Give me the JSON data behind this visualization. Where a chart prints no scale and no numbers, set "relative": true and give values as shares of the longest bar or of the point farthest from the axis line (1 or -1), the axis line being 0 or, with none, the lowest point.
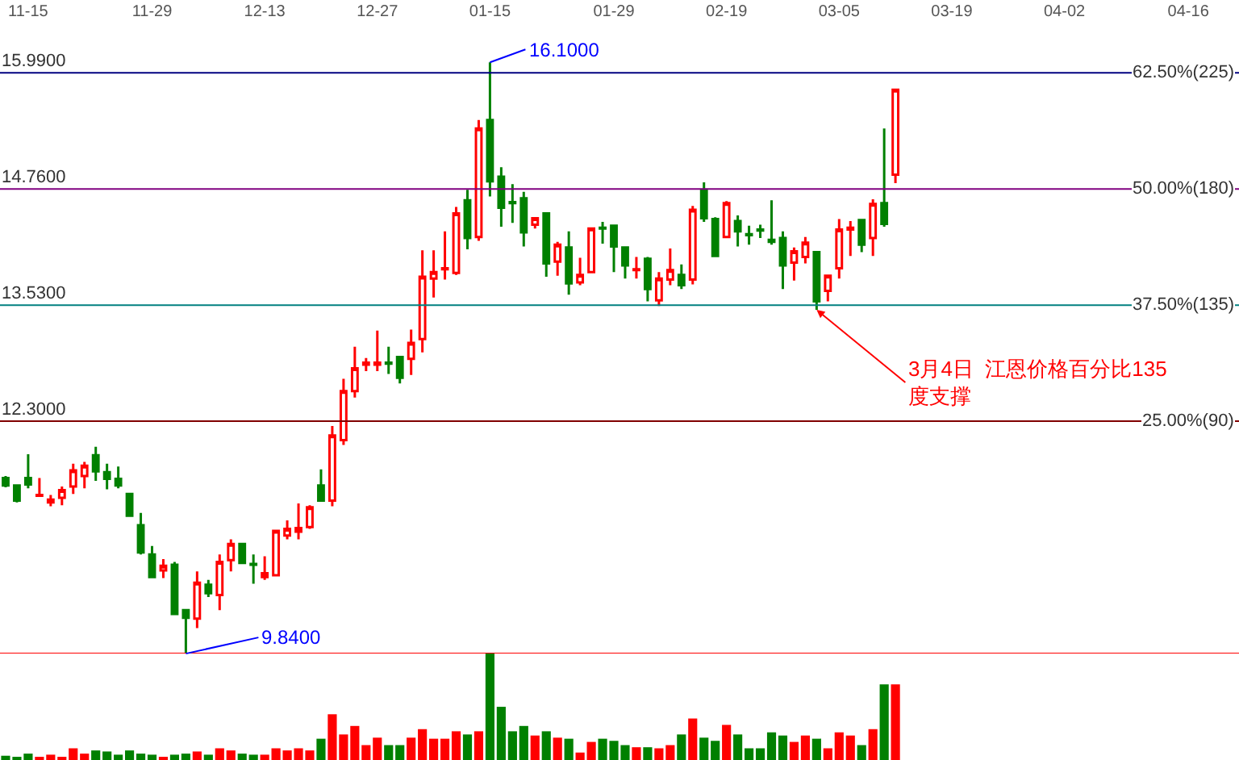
{
  "chart_data": [
    {
      "type": "candlestick",
      "categories": [
        null,
        null,
        "11-15",
        null,
        null,
        null,
        null,
        null,
        null,
        null,
        null,
        null,
        null,
        "11-29",
        null,
        null,
        null,
        null,
        null,
        null,
        null,
        null,
        null,
        "12-13",
        null,
        null,
        null,
        null,
        null,
        null,
        null,
        null,
        null,
        "12-27",
        null,
        null,
        null,
        null,
        null,
        null,
        null,
        null,
        null,
        "01-15",
        null,
        null,
        null,
        null,
        null,
        null,
        null,
        null,
        null,
        null,
        "01-29",
        null,
        null,
        null,
        null,
        null,
        null,
        null,
        null,
        null,
        "02-19",
        null,
        null,
        null,
        null,
        null,
        null,
        null,
        null,
        null,
        "03-05",
        null,
        null,
        null,
        null,
        null,
        null,
        null,
        null,
        null,
        "03-19",
        null,
        null,
        null,
        null,
        null,
        null,
        null,
        null,
        null,
        "04-02",
        null,
        null,
        null,
        null,
        null,
        null,
        null,
        null,
        null,
        null,
        "04-16",
        null,
        null,
        null,
        null
      ],
      "ohlc": [
        [
          11.7,
          11.72,
          11.6,
          11.62
        ],
        [
          11.62,
          11.62,
          11.44,
          11.46
        ],
        [
          11.7,
          11.95,
          11.59,
          11.63
        ],
        [
          11.51,
          11.7,
          11.5,
          11.52
        ],
        [
          11.44,
          11.52,
          11.4,
          11.47
        ],
        [
          11.49,
          11.61,
          11.41,
          11.57
        ],
        [
          11.61,
          11.85,
          11.53,
          11.78
        ],
        [
          11.72,
          11.87,
          11.59,
          11.83
        ],
        [
          11.94,
          12.03,
          11.67,
          11.77
        ],
        [
          11.76,
          11.85,
          11.58,
          11.69
        ],
        [
          11.69,
          11.82,
          11.59,
          11.62
        ],
        [
          11.53,
          11.53,
          11.3,
          11.3
        ],
        [
          11.2,
          11.33,
          10.89,
          10.91
        ],
        [
          10.89,
          10.98,
          10.65,
          10.65
        ],
        [
          10.72,
          10.84,
          10.64,
          10.77
        ],
        [
          10.78,
          10.81,
          10.26,
          10.26
        ],
        [
          10.3,
          10.3,
          9.84,
          10.22
        ],
        [
          10.21,
          10.71,
          10.11,
          10.59
        ],
        [
          10.57,
          10.62,
          10.44,
          10.48
        ],
        [
          10.46,
          10.89,
          10.3,
          10.81
        ],
        [
          10.83,
          11.05,
          10.71,
          11.0
        ],
        [
          11.0,
          11.0,
          10.79,
          10.8
        ],
        [
          10.79,
          10.89,
          10.58,
          10.78
        ],
        [
          10.65,
          10.87,
          10.62,
          10.69
        ],
        [
          10.67,
          11.15,
          10.67,
          11.14
        ],
        [
          11.09,
          11.25,
          11.05,
          11.16
        ],
        [
          11.13,
          11.43,
          11.05,
          11.17
        ],
        [
          11.18,
          11.41,
          11.16,
          11.39
        ],
        [
          11.62,
          11.79,
          11.46,
          11.46
        ],
        [
          11.46,
          12.25,
          11.4,
          12.15
        ],
        [
          12.1,
          12.75,
          12.05,
          12.62
        ],
        [
          12.62,
          13.09,
          12.55,
          12.86
        ],
        [
          12.9,
          12.97,
          12.83,
          12.92
        ],
        [
          12.9,
          13.26,
          12.83,
          12.92
        ],
        [
          12.92,
          13.09,
          12.8,
          12.91
        ],
        [
          12.98,
          12.98,
          12.7,
          12.76
        ],
        [
          12.96,
          13.27,
          12.79,
          13.13
        ],
        [
          13.17,
          14.11,
          13.03,
          13.83
        ],
        [
          13.81,
          14.11,
          13.61,
          13.88
        ],
        [
          13.91,
          14.31,
          13.8,
          13.92
        ],
        [
          13.87,
          14.57,
          13.85,
          14.5
        ],
        [
          14.64,
          14.75,
          14.12,
          14.24
        ],
        [
          14.25,
          15.49,
          14.21,
          15.4
        ],
        [
          15.49,
          16.1,
          14.68,
          14.84
        ],
        [
          14.89,
          14.99,
          14.36,
          14.56
        ],
        [
          14.62,
          14.81,
          14.4,
          14.61
        ],
        [
          14.66,
          14.73,
          14.15,
          14.3
        ],
        [
          14.38,
          14.45,
          14.34,
          14.45
        ],
        [
          14.5,
          14.5,
          13.83,
          13.97
        ],
        [
          13.99,
          14.2,
          13.84,
          14.17
        ],
        [
          14.14,
          14.31,
          13.64,
          13.76
        ],
        [
          13.77,
          14.03,
          13.74,
          13.85
        ],
        [
          13.88,
          14.34,
          13.87,
          14.34
        ],
        [
          14.35,
          14.41,
          14.18,
          14.34
        ],
        [
          14.37,
          14.37,
          13.88,
          14.15
        ],
        [
          14.14,
          14.14,
          13.81,
          13.95
        ],
        [
          13.9,
          14.04,
          13.81,
          13.91
        ],
        [
          14.02,
          14.04,
          13.57,
          13.7
        ],
        [
          13.58,
          13.88,
          13.52,
          13.81
        ],
        [
          13.8,
          14.13,
          13.74,
          13.9
        ],
        [
          13.85,
          13.96,
          13.7,
          13.74
        ],
        [
          13.8,
          14.58,
          13.75,
          14.54
        ],
        [
          14.75,
          14.83,
          14.41,
          14.45
        ],
        [
          14.44,
          14.46,
          14.04,
          14.05
        ],
        [
          14.25,
          14.63,
          14.24,
          14.61
        ],
        [
          14.42,
          14.48,
          14.15,
          14.31
        ],
        [
          14.28,
          14.37,
          14.17,
          14.27
        ],
        [
          14.33,
          14.38,
          14.24,
          14.32
        ],
        [
          14.22,
          14.64,
          14.17,
          14.2
        ],
        [
          14.24,
          14.31,
          13.7,
          13.95
        ],
        [
          13.98,
          14.14,
          13.79,
          14.1
        ],
        [
          14.04,
          14.25,
          13.97,
          14.19
        ],
        [
          14.09,
          14.09,
          13.48,
          13.57
        ],
        [
          13.68,
          13.85,
          13.57,
          13.84
        ],
        [
          13.92,
          14.44,
          13.81,
          14.33
        ],
        [
          14.33,
          14.42,
          14.05,
          14.35
        ],
        [
          14.43,
          14.43,
          14.09,
          14.17
        ],
        [
          14.24,
          14.65,
          14.05,
          14.6
        ],
        [
          14.61,
          15.4,
          14.36,
          14.39
        ],
        [
          14.91,
          15.81,
          14.82,
          15.81
        ],
        null,
        null,
        null,
        null,
        null,
        null,
        null,
        null,
        null,
        null,
        null,
        null,
        null,
        null,
        null,
        null,
        null,
        null,
        null,
        null,
        null,
        null,
        null,
        null,
        null,
        null,
        null,
        null,
        null,
        null
      ],
      "colors": [
        "#008000",
        "#008000",
        "#008000",
        "#ff0000",
        "#ff0000",
        "#ff0000",
        "#ff0000",
        "#ff0000",
        "#008000",
        "#008000",
        "#008000",
        "#008000",
        "#008000",
        "#008000",
        "#ff0000",
        "#008000",
        "#008000",
        "#ff0000",
        "#008000",
        "#ff0000",
        "#ff0000",
        "#008000",
        "#008000",
        "#ff0000",
        "#ff0000",
        "#ff0000",
        "#ff0000",
        "#ff0000",
        "#008000",
        "#ff0000",
        "#ff0000",
        "#ff0000",
        "#ff0000",
        "#ff0000",
        "#008000",
        "#008000",
        "#ff0000",
        "#ff0000",
        "#ff0000",
        "#ff0000",
        "#ff0000",
        "#008000",
        "#ff0000",
        "#008000",
        "#008000",
        "#008000",
        "#008000",
        "#ff0000",
        "#008000",
        "#ff0000",
        "#008000",
        "#ff0000",
        "#ff0000",
        "#008000",
        "#008000",
        "#008000",
        "#ff0000",
        "#008000",
        "#ff0000",
        "#ff0000",
        "#008000",
        "#ff0000",
        "#008000",
        "#008000",
        "#ff0000",
        "#008000",
        "#008000",
        "#008000",
        "#008000",
        "#008000",
        "#ff0000",
        "#ff0000",
        "#008000",
        "#ff0000",
        "#ff0000",
        "#ff0000",
        "#008000",
        "#ff0000",
        "#008000",
        "#ff0000",
        null,
        null,
        null,
        null,
        null,
        null,
        null,
        null,
        null,
        null,
        null,
        null,
        null,
        null,
        null,
        null,
        null,
        null,
        null,
        null,
        null,
        null,
        null,
        null,
        null,
        null,
        null,
        null,
        null,
        null
      ],
      "ylim": [
        9.84,
        16.76
      ],
      "yticks": [
        {
          "value": 12.3,
          "label": "12.3000"
        },
        {
          "value": 13.53,
          "label": "13.5300"
        },
        {
          "value": 14.76,
          "label": "14.7600"
        },
        {
          "value": 15.99,
          "label": "15.9900"
        }
      ],
      "ref_lines": [
        {
          "axis": "y",
          "value": 15.99,
          "color": "#000080"
        },
        {
          "axis": "y",
          "value": 14.76,
          "color": "#800080"
        },
        {
          "axis": "y",
          "value": 13.53,
          "color": "#008080"
        },
        {
          "axis": "y",
          "value": 12.3,
          "color": "#800000"
        },
        {
          "axis": "y",
          "value": 9.84,
          "color": "#ff0000"
        }
      ],
      "annotations": [
        {
          "text": "16.1000",
          "x": "01-15",
          "y": 16.1
        },
        {
          "text": "9.8400",
          "y": 9.84
        },
        {
          "text": "3月4日  江恩价格百分比135\n度支撑",
          "y": 13.48
        },
        "62.50%(225)",
        "50.00%(180)",
        "37.50%(135)",
        "25.00%(90)"
      ]
    },
    {
      "type": "bar",
      "relative": true,
      "tick_labels": false,
      "categories": [
        null,
        null,
        null,
        null,
        null,
        null,
        null,
        null,
        null,
        null,
        null,
        null,
        null,
        null,
        null,
        null,
        null,
        null,
        null,
        null,
        null,
        null,
        null,
        null,
        null,
        null,
        null,
        null,
        null,
        null,
        null,
        null,
        null,
        null,
        null,
        null,
        null,
        null,
        null,
        null,
        null,
        null,
        null,
        null,
        null,
        null,
        null,
        null,
        null,
        null,
        null,
        null,
        null,
        null,
        null,
        null,
        null,
        null,
        null,
        null,
        null,
        null,
        null,
        null,
        null,
        null,
        null,
        null,
        null,
        null,
        null,
        null,
        null,
        null,
        null,
        null,
        null,
        null,
        null,
        null,
        null,
        null,
        null,
        null,
        null,
        null,
        null,
        null,
        null,
        null,
        null,
        null,
        null,
        null,
        null,
        null,
        null,
        null,
        null,
        null,
        null,
        null,
        null,
        null,
        null,
        null,
        null,
        null,
        null,
        null
      ],
      "values": [
        0.04,
        0.03,
        0.06,
        0.03,
        0.05,
        0.03,
        0.11,
        0.06,
        0.09,
        0.08,
        0.05,
        0.09,
        0.06,
        0.05,
        0.03,
        0.05,
        0.06,
        0.08,
        0.05,
        0.11,
        0.09,
        0.06,
        0.05,
        0.05,
        0.11,
        0.09,
        0.11,
        0.09,
        0.2,
        0.43,
        0.24,
        0.32,
        0.14,
        0.21,
        0.14,
        0.14,
        0.21,
        0.29,
        0.2,
        0.2,
        0.27,
        0.24,
        0.27,
        1,
        0.5,
        0.27,
        0.32,
        0.23,
        0.27,
        0.21,
        0.2,
        0.07,
        0.17,
        0.2,
        0.18,
        0.14,
        0.12,
        0.12,
        0.11,
        0.14,
        0.24,
        0.39,
        0.21,
        0.18,
        0.33,
        0.24,
        0.11,
        0.11,
        0.26,
        0.23,
        0.17,
        0.23,
        0.2,
        0.11,
        0.26,
        0.23,
        0.14,
        0.29,
        0.71,
        0.71,
        null,
        null,
        null,
        null,
        null,
        null,
        null,
        null,
        null,
        null,
        null,
        null,
        null,
        null,
        null,
        null,
        null,
        null,
        null,
        null,
        null,
        null,
        null,
        null,
        null,
        null,
        null,
        null,
        null,
        null
      ],
      "colors": [
        "#008000",
        "#008000",
        "#008000",
        "#ff0000",
        "#ff0000",
        "#ff0000",
        "#ff0000",
        "#ff0000",
        "#008000",
        "#008000",
        "#008000",
        "#008000",
        "#008000",
        "#008000",
        "#ff0000",
        "#008000",
        "#008000",
        "#ff0000",
        "#008000",
        "#ff0000",
        "#ff0000",
        "#008000",
        "#008000",
        "#ff0000",
        "#ff0000",
        "#ff0000",
        "#ff0000",
        "#ff0000",
        "#008000",
        "#ff0000",
        "#ff0000",
        "#ff0000",
        "#ff0000",
        "#ff0000",
        "#008000",
        "#008000",
        "#ff0000",
        "#ff0000",
        "#ff0000",
        "#ff0000",
        "#ff0000",
        "#008000",
        "#ff0000",
        "#008000",
        "#008000",
        "#008000",
        "#008000",
        "#ff0000",
        "#008000",
        "#ff0000",
        "#008000",
        "#ff0000",
        "#ff0000",
        "#008000",
        "#008000",
        "#008000",
        "#ff0000",
        "#008000",
        "#ff0000",
        "#ff0000",
        "#008000",
        "#ff0000",
        "#008000",
        "#008000",
        "#ff0000",
        "#008000",
        "#008000",
        "#008000",
        "#008000",
        "#008000",
        "#ff0000",
        "#ff0000",
        "#008000",
        "#ff0000",
        "#ff0000",
        "#ff0000",
        "#008000",
        "#ff0000",
        "#008000",
        "#ff0000",
        null,
        null,
        null,
        null,
        null,
        null,
        null,
        null,
        null,
        null,
        null,
        null,
        null,
        null,
        null,
        null,
        null,
        null,
        null,
        null,
        null,
        null,
        null,
        null,
        null,
        null,
        null,
        null,
        null,
        null
      ]
    }
  ]
}
